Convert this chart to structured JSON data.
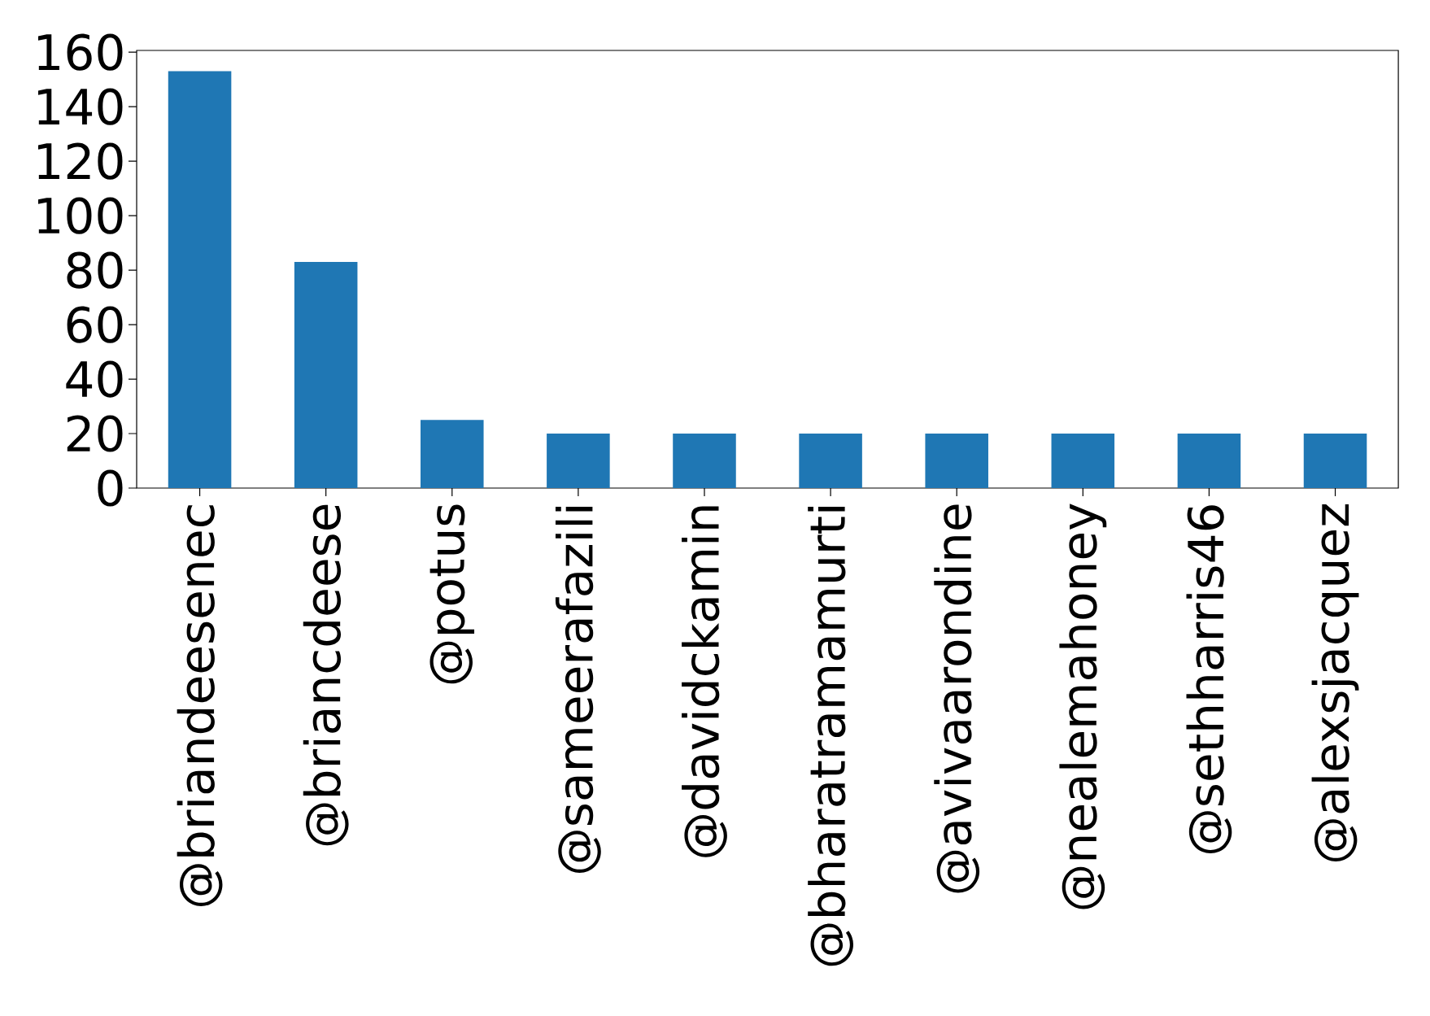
{
  "chart_data": {
    "type": "bar",
    "categories": [
      "@briandeesenec",
      "@briancdeese",
      "@potus",
      "@sameerafazili",
      "@davidckamin",
      "@bharatramamurti",
      "@avivaarondine",
      "@nealemahoney",
      "@sethharris46",
      "@alexsjacquez"
    ],
    "values": [
      153,
      83,
      25,
      20,
      20,
      20,
      20,
      20,
      20,
      20
    ],
    "color": "#1f77b4",
    "ylim": [
      0,
      160.65
    ],
    "yticks": [
      0,
      20,
      40,
      60,
      80,
      100,
      120,
      140,
      160
    ],
    "grid": false
  }
}
